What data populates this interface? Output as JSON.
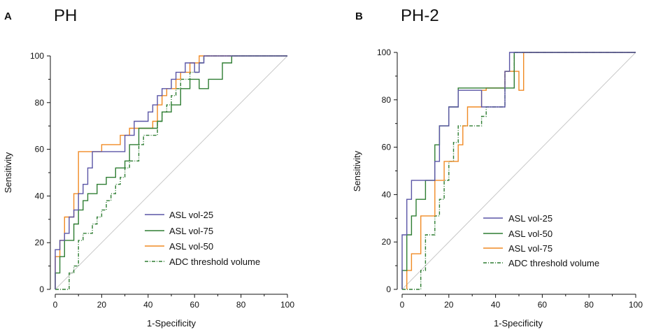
{
  "chart_data": [
    {
      "type": "line",
      "panel_letter": "A",
      "title": "PH",
      "xlabel": "1-Specificity",
      "ylabel": "Sensitivity",
      "xlim": [
        0,
        100
      ],
      "ylim": [
        0,
        100
      ],
      "xticks": [
        "0",
        "20",
        "40",
        "60",
        "80",
        "100"
      ],
      "yticks": [
        "0",
        "20",
        "40",
        "60",
        "80",
        "100"
      ],
      "grid": false,
      "legend_position": "bottom-right",
      "reference_line": {
        "from": [
          0,
          0
        ],
        "to": [
          100,
          100
        ],
        "color": "#c8c8c8"
      },
      "series": [
        {
          "name": "ASL vol-25",
          "color": "#5a55a6",
          "dash": "none",
          "x": [
            0,
            0,
            2,
            2,
            4,
            4,
            6,
            6,
            8,
            8,
            10,
            10,
            12,
            12,
            14,
            14,
            16,
            16,
            30,
            30,
            34,
            34,
            40,
            40,
            42,
            42,
            44,
            44,
            46,
            46,
            50,
            50,
            52,
            52,
            56,
            56,
            60,
            60,
            62,
            62,
            64,
            64,
            100
          ],
          "y": [
            0,
            17,
            17,
            21,
            21,
            24,
            24,
            31,
            31,
            34,
            34,
            41,
            41,
            45,
            45,
            52,
            52,
            59,
            59,
            66,
            66,
            72,
            72,
            76,
            76,
            79,
            79,
            83,
            83,
            86,
            86,
            90,
            90,
            93,
            93,
            97,
            97,
            93,
            93,
            97,
            97,
            100,
            100
          ]
        },
        {
          "name": "ASL vol-75",
          "color": "#2e7d32",
          "dash": "none",
          "x": [
            0,
            0,
            2,
            2,
            4,
            4,
            8,
            8,
            10,
            10,
            12,
            12,
            14,
            14,
            18,
            18,
            22,
            22,
            26,
            26,
            30,
            30,
            32,
            32,
            36,
            36,
            44,
            44,
            46,
            46,
            50,
            50,
            54,
            54,
            58,
            58,
            62,
            62,
            66,
            66,
            72,
            72,
            76,
            76,
            100
          ],
          "y": [
            0,
            7,
            7,
            14,
            14,
            21,
            21,
            28,
            28,
            34,
            34,
            38,
            38,
            41,
            41,
            45,
            45,
            48,
            48,
            52,
            52,
            55,
            55,
            62,
            62,
            69,
            69,
            72,
            72,
            76,
            76,
            79,
            79,
            86,
            86,
            90,
            90,
            86,
            86,
            90,
            90,
            97,
            97,
            100,
            100
          ]
        },
        {
          "name": "ASL vol-50",
          "color": "#f08a24",
          "dash": "none",
          "x": [
            0,
            0,
            2,
            2,
            4,
            4,
            8,
            8,
            10,
            10,
            20,
            20,
            28,
            28,
            32,
            32,
            42,
            42,
            44,
            44,
            46,
            46,
            48,
            48,
            52,
            52,
            54,
            54,
            58,
            58,
            62,
            62,
            100
          ],
          "y": [
            0,
            14,
            14,
            21,
            21,
            31,
            31,
            41,
            41,
            59,
            59,
            62,
            62,
            66,
            66,
            69,
            69,
            72,
            72,
            79,
            79,
            83,
            83,
            86,
            86,
            90,
            90,
            93,
            93,
            97,
            97,
            100,
            100
          ]
        },
        {
          "name": "ADC threshold volume",
          "color": "#2e7d32",
          "dash": "5,2,1,2",
          "x": [
            0,
            6,
            6,
            8,
            8,
            10,
            10,
            12,
            12,
            16,
            16,
            18,
            18,
            20,
            20,
            22,
            22,
            24,
            24,
            26,
            26,
            28,
            28,
            30,
            30,
            32,
            32,
            36,
            36,
            38,
            38,
            44,
            44,
            46,
            46,
            48,
            48,
            50,
            50,
            52,
            52,
            54,
            54,
            58,
            58,
            62,
            62,
            64,
            64,
            100
          ],
          "y": [
            0,
            0,
            7,
            7,
            10,
            10,
            21,
            21,
            24,
            24,
            28,
            28,
            31,
            31,
            34,
            34,
            38,
            38,
            41,
            41,
            45,
            45,
            48,
            48,
            52,
            52,
            55,
            55,
            62,
            62,
            66,
            66,
            72,
            72,
            76,
            76,
            79,
            79,
            83,
            83,
            86,
            86,
            90,
            90,
            93,
            93,
            97,
            97,
            100,
            100
          ]
        }
      ]
    },
    {
      "type": "line",
      "panel_letter": "B",
      "title": "PH-2",
      "xlabel": "1-Specificity",
      "ylabel": "Sensitivity",
      "xlim": [
        0,
        100
      ],
      "ylim": [
        0,
        100
      ],
      "xticks": [
        "0",
        "20",
        "40",
        "60",
        "80",
        "100"
      ],
      "yticks": [
        "0",
        "20",
        "40",
        "60",
        "80",
        "100"
      ],
      "grid": false,
      "legend_position": "bottom-right",
      "reference_line": {
        "from": [
          0,
          0
        ],
        "to": [
          100,
          100
        ],
        "color": "#c8c8c8"
      },
      "series": [
        {
          "name": "ASL vol-25",
          "color": "#5a55a6",
          "dash": "none",
          "x": [
            0,
            0,
            2,
            2,
            4,
            4,
            14,
            14,
            16,
            16,
            20,
            20,
            24,
            24,
            34,
            34,
            44,
            44,
            46,
            46,
            100
          ],
          "y": [
            0,
            23,
            23,
            38,
            38,
            46,
            46,
            54,
            54,
            69,
            69,
            77,
            77,
            84,
            84,
            77,
            77,
            92,
            92,
            100,
            100
          ]
        },
        {
          "name": "ASL vol-50",
          "color": "#2e7d32",
          "dash": "none",
          "x": [
            0,
            0,
            2,
            2,
            4,
            4,
            6,
            6,
            10,
            10,
            14,
            14,
            16,
            16,
            20,
            20,
            24,
            24,
            48,
            48,
            100
          ],
          "y": [
            0,
            8,
            8,
            23,
            23,
            31,
            31,
            38,
            38,
            46,
            46,
            61,
            61,
            69,
            69,
            77,
            77,
            85,
            85,
            100,
            100
          ]
        },
        {
          "name": "ASL vol-75",
          "color": "#f08a24",
          "dash": "none",
          "x": [
            2,
            2,
            4,
            4,
            8,
            8,
            14,
            14,
            18,
            18,
            24,
            24,
            26,
            26,
            28,
            28,
            34,
            34,
            36,
            36,
            44,
            44,
            50,
            50,
            52,
            52,
            100
          ],
          "y": [
            0,
            8,
            8,
            15,
            15,
            31,
            31,
            46,
            46,
            54,
            54,
            61,
            61,
            69,
            69,
            77,
            77,
            84,
            84,
            85,
            85,
            92,
            92,
            84,
            84,
            100,
            100
          ]
        },
        {
          "name": "ADC threshold volume",
          "color": "#2e7d32",
          "dash": "5,2,1,2",
          "x": [
            0,
            8,
            8,
            10,
            10,
            14,
            14,
            16,
            16,
            18,
            18,
            20,
            20,
            22,
            22,
            24,
            24,
            34,
            34,
            36,
            36,
            44,
            44,
            48,
            48,
            100
          ],
          "y": [
            0,
            0,
            8,
            8,
            23,
            23,
            31,
            31,
            38,
            38,
            46,
            46,
            54,
            54,
            62,
            62,
            69,
            69,
            73,
            73,
            77,
            77,
            92,
            92,
            100,
            100
          ]
        }
      ]
    }
  ]
}
